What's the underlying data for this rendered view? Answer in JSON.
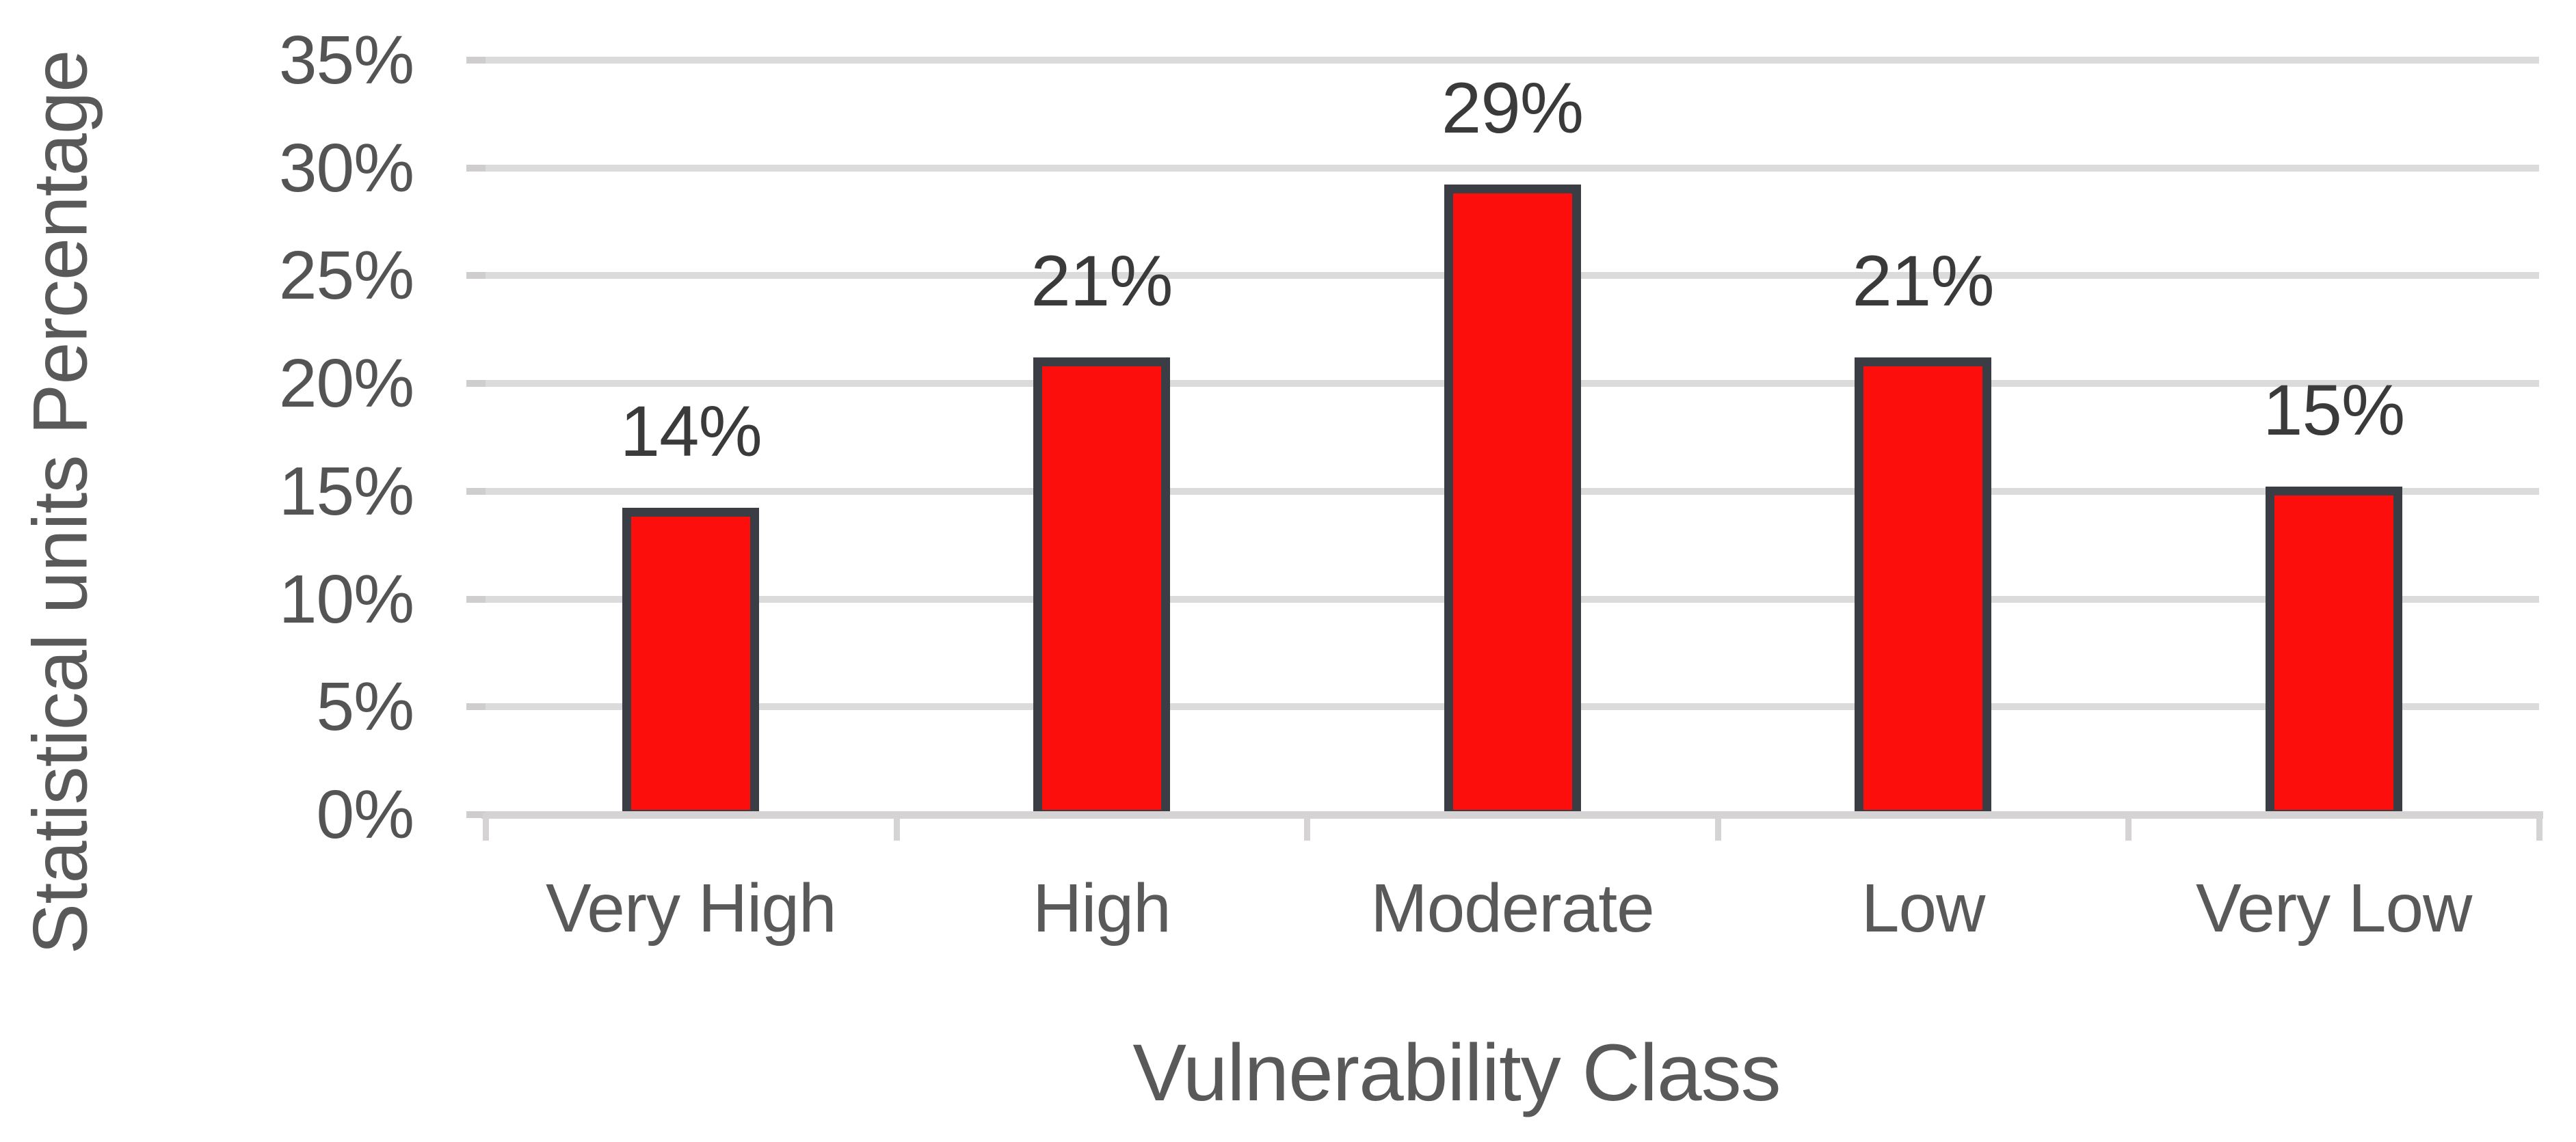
{
  "chart_data": {
    "type": "bar",
    "title": "",
    "categories": [
      "Very High",
      "High",
      "Moderate",
      "Low",
      "Very Low"
    ],
    "values": [
      14,
      21,
      29,
      21,
      15
    ],
    "data_labels": [
      "14%",
      "21%",
      "29%",
      "21%",
      "15%"
    ],
    "xlabel": "Vulnerability Class",
    "ylabel": "Statistical units Percentage",
    "ylim": [
      0,
      35
    ],
    "ytick_step": 5,
    "ytick_labels": [
      "35%",
      "30%",
      "25%",
      "20%",
      "15%",
      "10%",
      "5%",
      "0%"
    ],
    "grid": "horizontal",
    "legend": "none",
    "colors": {
      "background": "#ffffff",
      "bar_fill": "#FB0E0B",
      "bar_border": "#3A3E44",
      "gridline": "#DBDBDB",
      "axis_line": "#D5D3D3",
      "tick_mark": "#CFCDCD",
      "tick_label_text": "#545454",
      "data_label_text": "#3A3A3A",
      "category_text": "#595959",
      "axis_title_text": "#595959"
    }
  }
}
